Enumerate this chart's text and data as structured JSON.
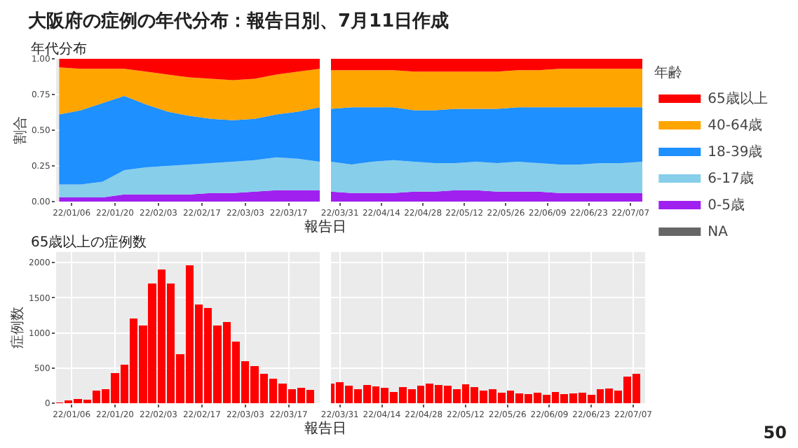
{
  "chart_data": [
    {
      "type": "area",
      "stacked": true,
      "title": "大阪府の症例の年代分布：報告日別、7月11日作成",
      "subtitle": "年代分布",
      "ylabel": "割合",
      "xlabel": "報告日",
      "grid": true,
      "legend": false,
      "x": [
        "--01-02",
        "--01-09",
        "--01-16",
        "--01-23",
        "--01-30",
        "--02-06",
        "--02-13",
        "--02-20",
        "--02-27",
        "--03-06",
        "--03-13",
        "--03-20",
        "--03-27"
      ],
      "xlim": [
        "--01-01",
        "--03-27"
      ],
      "xticks": [
        {
          "value": "--01-06",
          "label": "22/01/06"
        },
        {
          "value": "--01-20",
          "label": "22/01/20"
        },
        {
          "value": "--02-03",
          "label": "22/02/03"
        },
        {
          "value": "--02-17",
          "label": "22/02/17"
        },
        {
          "value": "--03-03",
          "label": "22/03/03"
        },
        {
          "value": "--03-17",
          "label": "22/03/17"
        }
      ],
      "ylim": [
        0,
        1
      ],
      "yticks": [
        {
          "value": 0,
          "label": "0.00"
        },
        {
          "value": 0.25,
          "label": "0.25"
        },
        {
          "value": 0.5,
          "label": "0.50"
        },
        {
          "value": 0.75,
          "label": "0.75"
        },
        {
          "value": 1,
          "label": "1.00"
        }
      ],
      "series": [
        {
          "color": "#a020f0",
          "values": [
            0.03,
            0.03,
            0.03,
            0.05,
            0.05,
            0.05,
            0.05,
            0.06,
            0.06,
            0.07,
            0.08,
            0.08,
            0.08
          ]
        },
        {
          "color": "#87ceeb",
          "values": [
            0.09,
            0.09,
            0.11,
            0.17,
            0.19,
            0.2,
            0.21,
            0.21,
            0.22,
            0.22,
            0.23,
            0.22,
            0.2
          ]
        },
        {
          "color": "#1e90ff",
          "values": [
            0.49,
            0.52,
            0.55,
            0.52,
            0.44,
            0.38,
            0.34,
            0.31,
            0.29,
            0.29,
            0.3,
            0.33,
            0.38
          ]
        },
        {
          "color": "#ffa500",
          "values": [
            0.33,
            0.29,
            0.24,
            0.19,
            0.23,
            0.26,
            0.27,
            0.28,
            0.28,
            0.28,
            0.28,
            0.28,
            0.27
          ]
        },
        {
          "color": "#ff0000",
          "values": [
            0.06,
            0.07,
            0.07,
            0.07,
            0.09,
            0.11,
            0.13,
            0.14,
            0.15,
            0.14,
            0.11,
            0.09,
            0.07
          ]
        }
      ]
    },
    {
      "type": "area",
      "stacked": true,
      "grid": true,
      "legend": "right",
      "legend_title": "年齢",
      "tick_labels": "x",
      "x": [
        "--03-28",
        "--04-04",
        "--04-11",
        "--04-18",
        "--04-25",
        "--05-02",
        "--05-09",
        "--05-16",
        "--05-23",
        "--05-30",
        "--06-06",
        "--06-13",
        "--06-20",
        "--06-27",
        "--07-04",
        "--07-11"
      ],
      "xlim": [
        "--03-28",
        "--07-11"
      ],
      "xticks": [
        {
          "value": "--03-31",
          "label": "22/03/31"
        },
        {
          "value": "--04-14",
          "label": "22/04/14"
        },
        {
          "value": "--04-28",
          "label": "22/04/28"
        },
        {
          "value": "--05-12",
          "label": "22/05/12"
        },
        {
          "value": "--05-26",
          "label": "22/05/26"
        },
        {
          "value": "--06-09",
          "label": "22/06/09"
        },
        {
          "value": "--06-23",
          "label": "22/06/23"
        },
        {
          "value": "--07-07",
          "label": "22/07/07"
        }
      ],
      "ylim": [
        0,
        1
      ],
      "yticks": [
        0,
        0.25,
        0.5,
        0.75,
        1
      ],
      "series": [
        {
          "name": "NA",
          "color": "#666666",
          "values": [
            null,
            null,
            null,
            null,
            null,
            null,
            null,
            null,
            null,
            null,
            null,
            null,
            null,
            null,
            null,
            null
          ]
        },
        {
          "name": "0-5歳",
          "color": "#a020f0",
          "values": [
            0.07,
            0.06,
            0.06,
            0.06,
            0.07,
            0.07,
            0.08,
            0.08,
            0.07,
            0.07,
            0.07,
            0.06,
            0.06,
            0.06,
            0.06,
            0.06
          ]
        },
        {
          "name": "6-17歳",
          "color": "#87ceeb",
          "values": [
            0.21,
            0.2,
            0.22,
            0.23,
            0.21,
            0.2,
            0.19,
            0.2,
            0.2,
            0.21,
            0.2,
            0.2,
            0.2,
            0.21,
            0.21,
            0.22
          ]
        },
        {
          "name": "18-39歳",
          "color": "#1e90ff",
          "values": [
            0.37,
            0.4,
            0.38,
            0.37,
            0.36,
            0.37,
            0.38,
            0.37,
            0.38,
            0.38,
            0.39,
            0.4,
            0.4,
            0.39,
            0.39,
            0.38
          ]
        },
        {
          "name": "40-64歳",
          "color": "#ffa500",
          "values": [
            0.27,
            0.26,
            0.26,
            0.26,
            0.27,
            0.27,
            0.26,
            0.26,
            0.26,
            0.26,
            0.26,
            0.27,
            0.27,
            0.27,
            0.27,
            0.27
          ]
        },
        {
          "name": "65歳以上",
          "color": "#ff0000",
          "values": [
            0.08,
            0.08,
            0.08,
            0.08,
            0.09,
            0.09,
            0.09,
            0.09,
            0.09,
            0.08,
            0.08,
            0.07,
            0.07,
            0.07,
            0.07,
            0.07
          ]
        }
      ]
    },
    {
      "type": "bar",
      "subtitle": "65歳以上の症例数",
      "ylabel": "症例数",
      "xlabel": "報告日",
      "grid": true,
      "legend": false,
      "x": [
        "--01-02",
        "--01-05",
        "--01-08",
        "--01-11",
        "--01-14",
        "--01-17",
        "--01-20",
        "--01-23",
        "--01-26",
        "--01-29",
        "--02-01",
        "--02-04",
        "--02-07",
        "--02-10",
        "--02-13",
        "--02-16",
        "--02-19",
        "--02-22",
        "--02-25",
        "--02-28",
        "--03-03",
        "--03-06",
        "--03-09",
        "--03-12",
        "--03-15",
        "--03-18",
        "--03-21",
        "--03-24"
      ],
      "xlim": [
        "--01-01",
        "--03-27"
      ],
      "xticks": [
        {
          "value": "--01-06",
          "label": "22/01/06"
        },
        {
          "value": "--01-20",
          "label": "22/01/20"
        },
        {
          "value": "--02-03",
          "label": "22/02/03"
        },
        {
          "value": "--02-17",
          "label": "22/02/17"
        },
        {
          "value": "--03-03",
          "label": "22/03/03"
        },
        {
          "value": "--03-17",
          "label": "22/03/17"
        }
      ],
      "ylim": [
        0,
        2150
      ],
      "yticks": [
        0,
        500,
        1000,
        1500,
        2000
      ],
      "series": [
        {
          "color": "#ff0000",
          "values": [
            10,
            40,
            60,
            50,
            180,
            200,
            430,
            550,
            1200,
            1100,
            1700,
            1900,
            1700,
            700,
            1960,
            1400,
            1350,
            1100,
            1150,
            880,
            600,
            530,
            420,
            350,
            280,
            200,
            220,
            190
          ]
        }
      ]
    },
    {
      "type": "bar",
      "grid": true,
      "legend": false,
      "tick_labels": "x",
      "annotations": [
        "50"
      ],
      "x": [
        "--03-28",
        "--03-31",
        "--04-03",
        "--04-06",
        "--04-09",
        "--04-12",
        "--04-15",
        "--04-18",
        "--04-21",
        "--04-24",
        "--04-27",
        "--04-30",
        "--05-03",
        "--05-06",
        "--05-09",
        "--05-12",
        "--05-15",
        "--05-18",
        "--05-21",
        "--05-24",
        "--05-27",
        "--05-30",
        "--06-02",
        "--06-05",
        "--06-08",
        "--06-11",
        "--06-14",
        "--06-17",
        "--06-20",
        "--06-23",
        "--06-26",
        "--06-29",
        "--07-02",
        "--07-05",
        "--07-08"
      ],
      "xlim": [
        "--03-28",
        "--07-11"
      ],
      "xticks": [
        {
          "value": "--03-31",
          "label": "22/03/31"
        },
        {
          "value": "--04-14",
          "label": "22/04/14"
        },
        {
          "value": "--04-28",
          "label": "22/04/28"
        },
        {
          "value": "--05-12",
          "label": "22/05/12"
        },
        {
          "value": "--05-26",
          "label": "22/05/26"
        },
        {
          "value": "--06-09",
          "label": "22/06/09"
        },
        {
          "value": "--06-23",
          "label": "22/06/23"
        },
        {
          "value": "--07-07",
          "label": "22/07/07"
        }
      ],
      "ylim": [
        0,
        2150
      ],
      "yticks": [
        0,
        500,
        1000,
        1500,
        2000
      ],
      "series": [
        {
          "color": "#ff0000",
          "values": [
            280,
            300,
            250,
            200,
            260,
            240,
            220,
            160,
            230,
            200,
            250,
            280,
            260,
            250,
            200,
            270,
            230,
            180,
            200,
            150,
            180,
            140,
            130,
            150,
            120,
            160,
            130,
            140,
            150,
            120,
            200,
            210,
            180,
            380,
            420
          ]
        }
      ]
    }
  ]
}
